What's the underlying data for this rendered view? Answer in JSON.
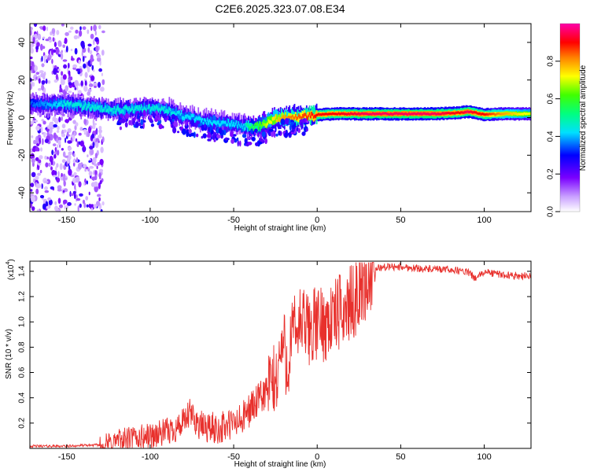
{
  "figure_title": "C2E6.2025.323.07.08.E34",
  "colors": {
    "snr_line": "#e8302c",
    "background": "#ffffff",
    "axes": "#000000"
  },
  "chart_data": [
    {
      "type": "heatmap",
      "name": "spectrogram",
      "title": "C2E6.2025.323.07.08.E34",
      "xlabel": "Height of straight line (km)",
      "ylabel": "Frequency (Hz)",
      "xlim": [
        -172,
        128
      ],
      "ylim": [
        -50,
        50
      ],
      "xticks": [
        -150,
        -100,
        -50,
        0,
        50,
        100
      ],
      "xtick_labels": [
        "-150",
        "-100",
        "-50",
        "0",
        "50",
        "100"
      ],
      "yticks": [
        -40,
        -20,
        0,
        20,
        40
      ],
      "ytick_labels": [
        "-40",
        "-20",
        "0",
        "20",
        "40"
      ],
      "colorbar": {
        "label": "Normalized spectral amplitude",
        "range": [
          0,
          1
        ],
        "ticks": [
          0.0,
          0.2,
          0.4,
          0.6,
          0.8
        ],
        "tick_labels": [
          "0.0",
          "0.2",
          "0.4",
          "0.6",
          "0.8"
        ],
        "colormap": "rainbow (white→violet→blue→cyan→green→yellow→red→magenta)"
      },
      "ridge": {
        "x": [
          -172,
          -160,
          -150,
          -140,
          -130,
          -120,
          -110,
          -100,
          -90,
          -80,
          -70,
          -60,
          -50,
          -45,
          -40,
          -35,
          -30,
          -25,
          -20,
          -10,
          0,
          10,
          30,
          50,
          70,
          85,
          90,
          95,
          100,
          110,
          128
        ],
        "y": [
          7,
          7,
          7,
          6,
          5,
          4,
          4.5,
          5,
          4,
          1,
          -1.5,
          -2.5,
          -3.5,
          -4.5,
          -5,
          -4.5,
          -2.5,
          -0.5,
          0,
          0.5,
          1.5,
          2,
          2,
          2,
          2,
          2.5,
          3.2,
          2.5,
          1.5,
          2,
          2
        ],
        "amplitude": [
          0.35,
          0.4,
          0.45,
          0.45,
          0.45,
          0.45,
          0.45,
          0.45,
          0.45,
          0.42,
          0.42,
          0.42,
          0.42,
          0.4,
          0.55,
          0.6,
          0.7,
          0.75,
          0.8,
          0.85,
          0.9,
          0.9,
          0.95,
          0.95,
          0.95,
          0.9,
          0.95,
          0.9,
          0.9,
          0.8,
          0.7
        ]
      },
      "noise_region_x": [
        -172,
        -128
      ]
    },
    {
      "type": "line",
      "name": "snr",
      "xlabel": "Height of straight line (km)",
      "ylabel": "SNR (10 * v/v)",
      "y_multiplier": "(x10^4)",
      "y_multiplier_base": "(x10",
      "y_multiplier_exp": "4",
      "xlim": [
        -172,
        128
      ],
      "ylim": [
        0,
        1.48
      ],
      "xticks": [
        -150,
        -100,
        -50,
        0,
        50,
        100
      ],
      "xtick_labels": [
        "-150",
        "-100",
        "-50",
        "0",
        "50",
        "100"
      ],
      "yticks": [
        0.2,
        0.4,
        0.6,
        0.8,
        1.0,
        1.2,
        1.4
      ],
      "ytick_labels": [
        "0.2",
        "0.4",
        "0.6",
        "0.8",
        "1.0",
        "1.2",
        "1.4"
      ],
      "series": [
        {
          "name": "SNR",
          "x": [
            -172,
            -150,
            -130,
            -120,
            -110,
            -100,
            -90,
            -80,
            -76,
            -70,
            -60,
            -50,
            -45,
            -40,
            -35,
            -30,
            -27,
            -25,
            -23,
            -20,
            -18,
            -15,
            -10,
            -5,
            0,
            5,
            10,
            15,
            20,
            25,
            30,
            35,
            40,
            45,
            50,
            60,
            70,
            80,
            90,
            95,
            100,
            110,
            120,
            128
          ],
          "values": [
            0.02,
            0.02,
            0.03,
            0.08,
            0.1,
            0.12,
            0.15,
            0.22,
            0.3,
            0.2,
            0.18,
            0.22,
            0.25,
            0.35,
            0.4,
            0.5,
            0.6,
            0.55,
            0.75,
            0.9,
            0.7,
            0.95,
            1.05,
            1.0,
            1.05,
            1.05,
            1.1,
            1.15,
            1.2,
            1.3,
            1.38,
            1.43,
            1.44,
            1.44,
            1.44,
            1.43,
            1.42,
            1.42,
            1.4,
            1.35,
            1.4,
            1.38,
            1.37,
            1.37
          ]
        }
      ]
    }
  ]
}
